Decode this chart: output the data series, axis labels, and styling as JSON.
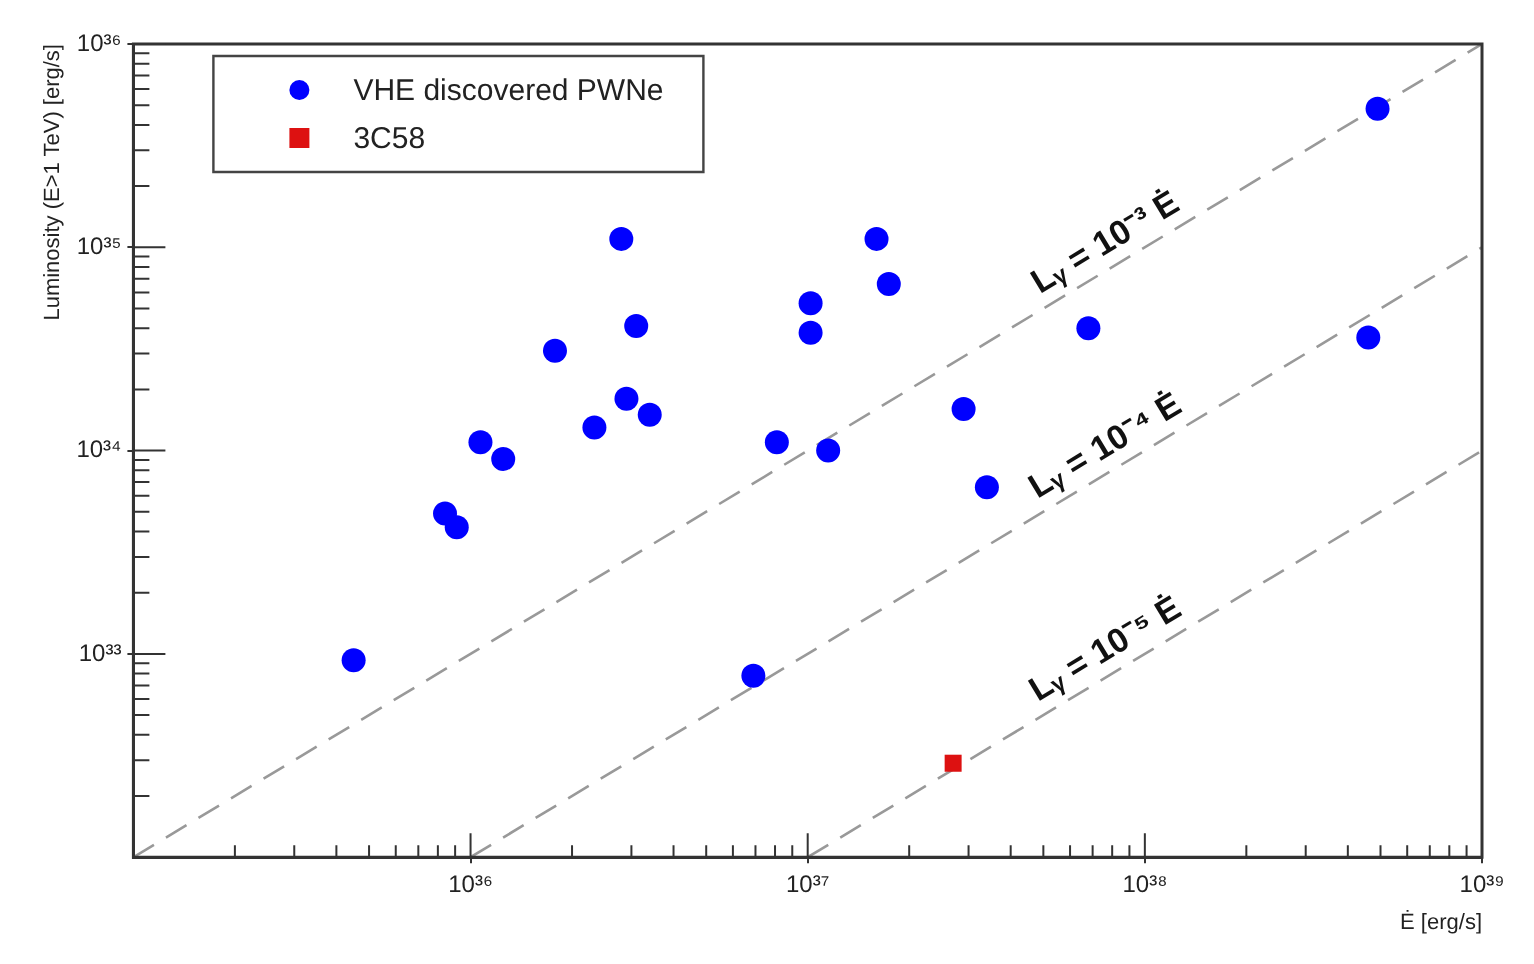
{
  "chart_data": {
    "type": "scatter",
    "xlabel": "Ė [erg/s]",
    "ylabel": "Luminosity (E>1 TeV) [erg/s]",
    "log": "xy",
    "legend": "top left",
    "marker": "circle",
    "xlim": [
      1e+35,
      1e+39
    ],
    "ylim": [
      1e+32,
      1e+36
    ],
    "xticks": [
      {
        "value": 1e+36,
        "label": "10³⁶"
      },
      {
        "value": 1e+37,
        "label": "10³⁷"
      },
      {
        "value": 1e+38,
        "label": "10³⁸"
      },
      {
        "value": 1e+39,
        "label": "10³⁹"
      }
    ],
    "yticks": [
      {
        "value": 1e+33,
        "label": "10³³"
      },
      {
        "value": 1e+34,
        "label": "10³⁴"
      },
      {
        "value": 1e+35,
        "label": "10³⁵"
      },
      {
        "value": 1e+36,
        "label": "10³⁶"
      }
    ],
    "series": [
      {
        "name": "VHE discovered PWNe",
        "color": "#0000ff",
        "x": [
          4.5e+35,
          8.4e+35,
          9.1e+35,
          1.07e+36,
          1.25e+36,
          1.78e+36,
          2.33e+36,
          2.8e+36,
          2.9e+36,
          3.1e+36,
          3.4e+36,
          8.1e+36,
          1.02e+37,
          1.02e+37,
          1.15e+37,
          1.6e+37,
          1.74e+37,
          2.9e+37,
          3.4e+37,
          6.8e+37,
          4.6e+38,
          4.9e+38,
          6.9e+36
        ],
        "values": [
          9.3e+32,
          4.9e+33,
          4.2e+33,
          1.1e+34,
          9.1e+33,
          3.1e+34,
          1.3e+34,
          1.1e+35,
          1.8e+34,
          4.1e+34,
          1.5e+34,
          1.1e+34,
          5.3e+34,
          3.8e+34,
          1e+34,
          1.1e+35,
          6.6e+34,
          1.6e+34,
          6.6e+33,
          4e+34,
          3.6e+34,
          4.8e+35,
          7.8e+32
        ]
      },
      {
        "name": "3C58",
        "color": "#dd1111",
        "marker": "square",
        "x": [
          2.7e+37
        ],
        "values": [
          2.9e+32
        ]
      },
      {
        "type": "line",
        "color": "#999999",
        "line_style": "dashed",
        "marker": "none",
        "x": [
          1e+35,
          1e+39
        ],
        "values": [
          1e+32,
          1e+36
        ]
      },
      {
        "type": "line",
        "color": "#999999",
        "line_style": "dashed",
        "marker": "none",
        "x": [
          1e+36,
          1e+39
        ],
        "values": [
          1e+32,
          1e+35
        ]
      },
      {
        "type": "line",
        "color": "#999999",
        "line_style": "dashed",
        "marker": "none",
        "x": [
          1e+37,
          1e+39
        ],
        "values": [
          1e+32,
          1e+34
        ]
      }
    ],
    "annotations": [
      "Lᵧ = 10⁻³ Ė",
      "Lᵧ = 10⁻⁴ Ė",
      "Lᵧ = 10⁻⁵ Ė"
    ]
  }
}
